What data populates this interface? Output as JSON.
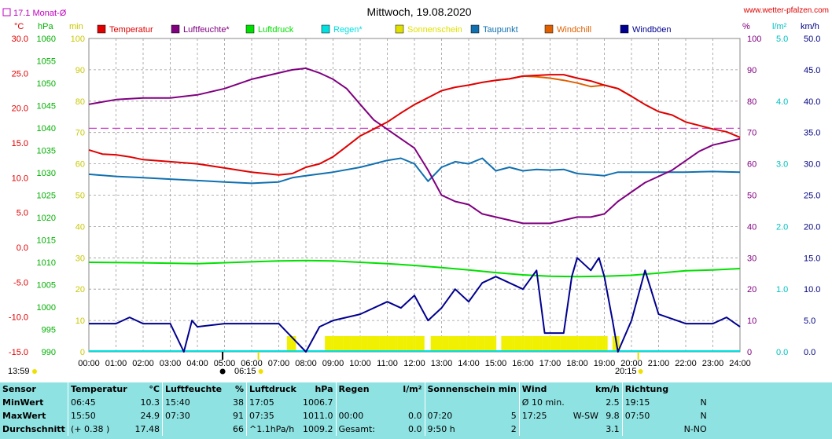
{
  "header": {
    "title": "Mittwoch, 19.08.2020",
    "url": "www.wetter-pfalzen.com",
    "monthly_avg_label": "17.1 Monat-Ø"
  },
  "axis_units": {
    "celsius": "°C",
    "hpa": "hPa",
    "min": "min",
    "percent": "%",
    "lm2": "l/m²",
    "kmh": "km/h"
  },
  "legend": [
    {
      "label": "Temperatur",
      "color": "#e00000"
    },
    {
      "label": "Luftfeuchte*",
      "color": "#800080"
    },
    {
      "label": "Luftdruck",
      "color": "#00e000"
    },
    {
      "label": "Regen*",
      "color": "#00e0e0"
    },
    {
      "label": "Sonnenschein",
      "color": "#e0e000"
    },
    {
      "label": "Taupunkt",
      "color": "#1070b0"
    },
    {
      "label": "Windchill",
      "color": "#e06000"
    },
    {
      "label": "Windböen",
      "color": "#000090"
    }
  ],
  "axes": {
    "temp_ticks": [
      "30.0",
      "25.0",
      "20.0",
      "15.0",
      "10.0",
      "5.0",
      "0.0",
      "-5.0",
      "-10.0",
      "-15.0"
    ],
    "hpa_ticks": [
      "1060",
      "1055",
      "1050",
      "1045",
      "1040",
      "1035",
      "1030",
      "1025",
      "1020",
      "1015",
      "1010",
      "1005",
      "1000",
      "995",
      "990"
    ],
    "min_ticks": [
      "100",
      "90",
      "80",
      "70",
      "60",
      "50",
      "40",
      "30",
      "20",
      "10",
      "0"
    ],
    "pct_ticks": [
      "100",
      "90",
      "80",
      "70",
      "60",
      "50",
      "40",
      "30",
      "20",
      "10",
      "0"
    ],
    "lm2_ticks": [
      "5.0",
      "4.0",
      "3.0",
      "2.0",
      "1.0",
      "0.0"
    ],
    "kmh_ticks": [
      "50.0",
      "45.0",
      "40.0",
      "35.0",
      "30.0",
      "25.0",
      "20.0",
      "15.0",
      "10.0",
      "5.0",
      "0.0"
    ],
    "x_ticks": [
      "00:00",
      "01:00",
      "02:00",
      "03:00",
      "04:00",
      "05:00",
      "06:00",
      "07:00",
      "08:00",
      "09:00",
      "10:00",
      "11:00",
      "12:00",
      "13:00",
      "14:00",
      "15:00",
      "16:00",
      "17:00",
      "18:00",
      "19:00",
      "20:00",
      "21:00",
      "22:00",
      "23:00",
      "24:00"
    ],
    "sunrise": "06:15",
    "sunset": "20:15",
    "day_length": "13:59"
  },
  "chart_data": {
    "type": "line",
    "title": "Mittwoch, 19.08.2020",
    "x_unit": "hour",
    "xlim": [
      0,
      24
    ],
    "monthly_avg_temp": 17.1,
    "series": [
      {
        "name": "Temperatur",
        "unit": "°C",
        "axis": "temp",
        "color": "#e00000",
        "points": [
          [
            0,
            14.0
          ],
          [
            0.5,
            13.4
          ],
          [
            1,
            13.3
          ],
          [
            1.5,
            13.0
          ],
          [
            2,
            12.6
          ],
          [
            3,
            12.3
          ],
          [
            4,
            12.0
          ],
          [
            5,
            11.4
          ],
          [
            6,
            10.8
          ],
          [
            7,
            10.4
          ],
          [
            7.5,
            10.6
          ],
          [
            8,
            11.5
          ],
          [
            8.5,
            12.0
          ],
          [
            9,
            13.0
          ],
          [
            9.5,
            14.5
          ],
          [
            10,
            16.0
          ],
          [
            10.5,
            17.0
          ],
          [
            11,
            18.0
          ],
          [
            11.5,
            19.3
          ],
          [
            12,
            20.5
          ],
          [
            12.5,
            21.5
          ],
          [
            13,
            22.5
          ],
          [
            13.5,
            23.0
          ],
          [
            14,
            23.3
          ],
          [
            14.5,
            23.7
          ],
          [
            15,
            24.0
          ],
          [
            15.5,
            24.2
          ],
          [
            16,
            24.6
          ],
          [
            16.5,
            24.7
          ],
          [
            17,
            24.8
          ],
          [
            17.5,
            24.8
          ],
          [
            18,
            24.3
          ],
          [
            18.5,
            23.9
          ],
          [
            19,
            23.3
          ],
          [
            19.5,
            22.8
          ],
          [
            20,
            21.7
          ],
          [
            20.5,
            20.5
          ],
          [
            21,
            19.5
          ],
          [
            21.5,
            19.0
          ],
          [
            22,
            18.0
          ],
          [
            22.5,
            17.5
          ],
          [
            23,
            17.0
          ],
          [
            23.5,
            16.6
          ],
          [
            24,
            15.8
          ]
        ]
      },
      {
        "name": "Windchill",
        "unit": "°C",
        "axis": "temp",
        "color": "#e06000",
        "points": [
          [
            15,
            24.0
          ],
          [
            15.5,
            24.2
          ],
          [
            16,
            24.6
          ],
          [
            16.5,
            24.5
          ],
          [
            17,
            24.3
          ],
          [
            17.5,
            24.0
          ],
          [
            18,
            23.6
          ],
          [
            18.5,
            23.1
          ],
          [
            19,
            23.3
          ],
          [
            19.5,
            22.8
          ],
          [
            20,
            21.7
          ]
        ]
      },
      {
        "name": "Luftfeuchte*",
        "unit": "%",
        "axis": "pct",
        "color": "#800080",
        "points": [
          [
            0,
            79
          ],
          [
            1,
            80.5
          ],
          [
            2,
            81
          ],
          [
            3,
            81
          ],
          [
            4,
            82
          ],
          [
            5,
            84
          ],
          [
            6,
            87
          ],
          [
            7,
            89
          ],
          [
            7.5,
            90
          ],
          [
            8,
            90.5
          ],
          [
            8.5,
            89
          ],
          [
            9,
            87
          ],
          [
            9.5,
            84
          ],
          [
            10,
            79
          ],
          [
            10.5,
            74
          ],
          [
            11,
            71
          ],
          [
            11.5,
            68
          ],
          [
            12,
            65
          ],
          [
            12.5,
            58
          ],
          [
            13,
            50
          ],
          [
            13.5,
            48
          ],
          [
            14,
            47
          ],
          [
            14.5,
            44
          ],
          [
            15,
            43
          ],
          [
            15.5,
            42
          ],
          [
            16,
            41
          ],
          [
            17,
            41
          ],
          [
            17.5,
            42
          ],
          [
            18,
            43
          ],
          [
            18.5,
            43
          ],
          [
            19,
            44
          ],
          [
            19.5,
            48
          ],
          [
            20,
            51
          ],
          [
            20.5,
            54
          ],
          [
            21,
            56
          ],
          [
            21.5,
            58
          ],
          [
            22,
            61
          ],
          [
            22.5,
            64
          ],
          [
            23,
            66
          ],
          [
            23.5,
            67
          ],
          [
            24,
            68
          ]
        ]
      },
      {
        "name": "Luftdruck",
        "unit": "hPa",
        "axis": "hpa",
        "color": "#00e000",
        "points": [
          [
            0,
            1010.0
          ],
          [
            2,
            1009.9
          ],
          [
            4,
            1009.7
          ],
          [
            6,
            1010.1
          ],
          [
            7,
            1010.3
          ],
          [
            8,
            1010.4
          ],
          [
            9,
            1010.3
          ],
          [
            10,
            1010.0
          ],
          [
            11,
            1009.7
          ],
          [
            12,
            1009.3
          ],
          [
            13,
            1008.8
          ],
          [
            14,
            1008.3
          ],
          [
            15,
            1007.7
          ],
          [
            16,
            1007.2
          ],
          [
            17,
            1006.9
          ],
          [
            18,
            1006.8
          ],
          [
            19,
            1006.9
          ],
          [
            20,
            1007.1
          ],
          [
            21,
            1007.6
          ],
          [
            22,
            1008.1
          ],
          [
            23,
            1008.3
          ],
          [
            24,
            1008.6
          ]
        ]
      },
      {
        "name": "Taupunkt",
        "unit": "°C",
        "axis": "temp",
        "color": "#1070b0",
        "points": [
          [
            0,
            10.5
          ],
          [
            1,
            10.2
          ],
          [
            2,
            10.0
          ],
          [
            3,
            9.8
          ],
          [
            4,
            9.6
          ],
          [
            5,
            9.4
          ],
          [
            6,
            9.2
          ],
          [
            7,
            9.4
          ],
          [
            7.5,
            10.0
          ],
          [
            8,
            10.3
          ],
          [
            9,
            10.8
          ],
          [
            10,
            11.5
          ],
          [
            10.5,
            12.0
          ],
          [
            11,
            12.5
          ],
          [
            11.5,
            12.8
          ],
          [
            12,
            12.0
          ],
          [
            12.5,
            9.5
          ],
          [
            13,
            11.5
          ],
          [
            13.5,
            12.3
          ],
          [
            14,
            12.0
          ],
          [
            14.5,
            12.8
          ],
          [
            15,
            11.0
          ],
          [
            15.5,
            11.5
          ],
          [
            16,
            11.0
          ],
          [
            16.5,
            11.2
          ],
          [
            17,
            11.1
          ],
          [
            17.5,
            11.2
          ],
          [
            18,
            10.6
          ],
          [
            19,
            10.3
          ],
          [
            19.5,
            10.8
          ],
          [
            20,
            10.8
          ],
          [
            21,
            10.8
          ],
          [
            22,
            10.8
          ],
          [
            23,
            10.9
          ],
          [
            24,
            10.8
          ]
        ]
      },
      {
        "name": "Windböen",
        "unit": "km/h",
        "axis": "kmh",
        "color": "#000090",
        "points": [
          [
            0,
            4.5
          ],
          [
            1,
            4.5
          ],
          [
            1.5,
            5.5
          ],
          [
            2,
            4.5
          ],
          [
            3,
            4.5
          ],
          [
            3.5,
            0
          ],
          [
            3.8,
            5.0
          ],
          [
            4,
            4.0
          ],
          [
            5,
            4.5
          ],
          [
            6,
            4.5
          ],
          [
            7,
            4.5
          ],
          [
            8,
            0
          ],
          [
            8.5,
            4.0
          ],
          [
            9,
            5.0
          ],
          [
            10,
            6.0
          ],
          [
            11,
            8.0
          ],
          [
            11.5,
            7.0
          ],
          [
            12,
            9.0
          ],
          [
            12.5,
            5.0
          ],
          [
            13,
            7.0
          ],
          [
            13.5,
            10.0
          ],
          [
            14,
            8.0
          ],
          [
            14.5,
            11.0
          ],
          [
            15,
            12.0
          ],
          [
            15.5,
            11.0
          ],
          [
            16,
            10.0
          ],
          [
            16.5,
            13.0
          ],
          [
            16.8,
            3.0
          ],
          [
            17.5,
            3.0
          ],
          [
            17.8,
            12.0
          ],
          [
            18,
            15.0
          ],
          [
            18.5,
            13.0
          ],
          [
            18.8,
            15.0
          ],
          [
            19,
            12.0
          ],
          [
            19.3,
            5.0
          ],
          [
            19.5,
            0
          ],
          [
            20,
            5.0
          ],
          [
            20.5,
            13.0
          ],
          [
            21,
            6.0
          ],
          [
            22,
            4.5
          ],
          [
            23,
            4.5
          ],
          [
            23.5,
            5.5
          ],
          [
            24,
            4.0
          ]
        ]
      }
    ],
    "sunshine_minutes": [
      [
        7.3,
        7.6
      ],
      [
        8.7,
        12.3
      ],
      [
        12.6,
        15.0
      ],
      [
        15.2,
        19.1
      ],
      [
        19.3,
        19.5
      ]
    ]
  },
  "stats": {
    "headers": {
      "sensor": "Sensor",
      "temp": "Temperatur",
      "temp_unit": "°C",
      "hum": "Luftfeuchte",
      "hum_unit": "%",
      "press": "Luftdruck",
      "press_unit": "hPa",
      "rain": "Regen",
      "rain_unit": "l/m²",
      "sun": "Sonnenschein min",
      "wind": "Wind",
      "wind_unit": "km/h",
      "dir": "Richtung"
    },
    "rows": [
      {
        "label": "MinWert",
        "temp_time": "06:45",
        "temp_val": "10.3",
        "hum_time": "15:40",
        "hum_val": "38",
        "press_time": "17:05",
        "press_val": "1006.7",
        "rain_time": "",
        "rain_val": "",
        "sun_time": "",
        "sun_val": "",
        "wind_time": "Ø 10 min.",
        "wind_extra": "",
        "wind_val": "2.5",
        "dir_time": "19:15",
        "dir_val": "N"
      },
      {
        "label": "MaxWert",
        "temp_time": "15:50",
        "temp_val": "24.9",
        "hum_time": "07:30",
        "hum_val": "91",
        "press_time": "07:35",
        "press_val": "1011.0",
        "rain_time": "00:00",
        "rain_val": "0.0",
        "sun_time": "07:20",
        "sun_val": "5",
        "wind_time": "17:25",
        "wind_extra": "W-SW",
        "wind_val": "9.8",
        "dir_time": "07:50",
        "dir_val": "N"
      },
      {
        "label": "Durchschnitt",
        "temp_time": "(+ 0.38 )",
        "temp_val": "17.48",
        "hum_time": "",
        "hum_val": "66",
        "press_time": "^1.1hPa/h",
        "press_val": "1009.2",
        "rain_time": "Gesamt:",
        "rain_val": "0.0",
        "sun_time": "9:50 h",
        "sun_val": "2",
        "wind_time": "",
        "wind_extra": "",
        "wind_val": "3.1",
        "dir_time": "",
        "dir_val": "N-NO"
      }
    ]
  }
}
